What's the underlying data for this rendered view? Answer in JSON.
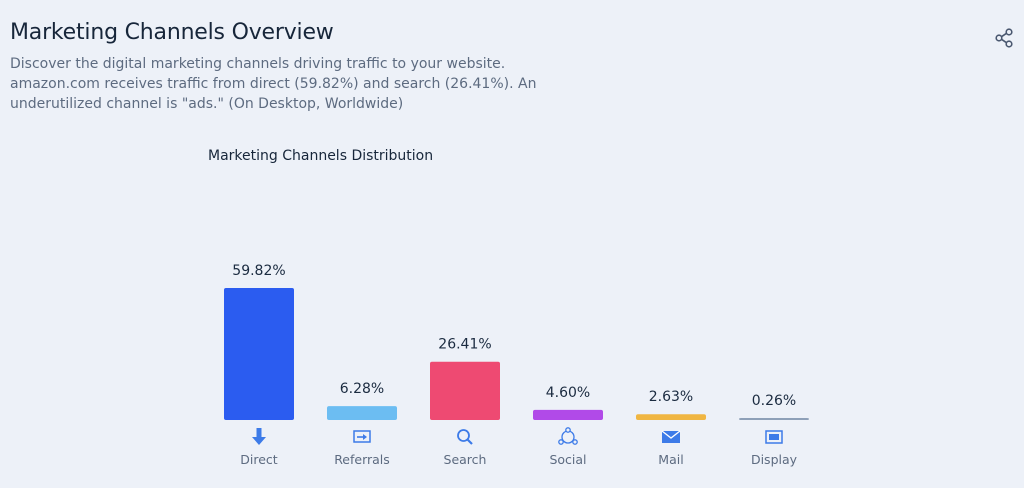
{
  "header": {
    "title": "Marketing Channels Overview",
    "description": "Discover the digital marketing channels driving traffic to your website. amazon.com receives traffic from direct (59.82%) and search (26.41%). An underutilized channel is \"ads.\" (On Desktop, Worldwide)",
    "share_icon": "share-icon"
  },
  "chart_data": {
    "type": "bar",
    "title": "Marketing Channels Distribution",
    "categories": [
      "Direct",
      "Referrals",
      "Search",
      "Social",
      "Mail",
      "Display"
    ],
    "values": [
      59.82,
      6.28,
      26.41,
      4.6,
      2.63,
      0.26
    ],
    "value_labels": [
      "59.82%",
      "6.28%",
      "26.41%",
      "4.60%",
      "2.63%",
      "0.26%"
    ],
    "colors": [
      "#2b5cf0",
      "#6cbdf2",
      "#ee4a72",
      "#b14ae8",
      "#f0b642",
      "#8ea0b8"
    ],
    "icons": [
      "direct-icon",
      "referrals-icon",
      "search-icon",
      "social-icon",
      "mail-icon",
      "display-icon"
    ],
    "icon_color": "#3d7be8",
    "xlabel": "",
    "ylabel": "",
    "ylim": [
      0,
      60
    ],
    "grid": false
  }
}
